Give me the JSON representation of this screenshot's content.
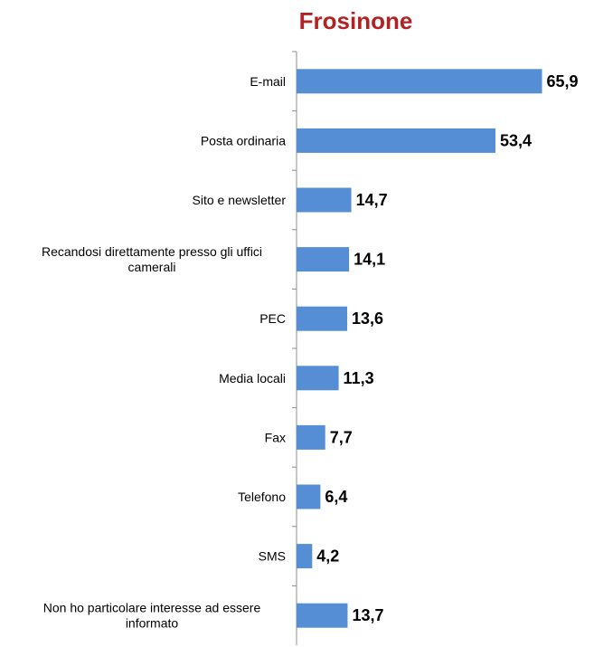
{
  "chart_data": {
    "type": "bar",
    "orientation": "horizontal",
    "title": "Frosinone",
    "categories": [
      "E-mail",
      "Posta ordinaria",
      "Sito e newsletter",
      "Recandosi direttamente presso gli uffici camerali",
      "PEC",
      "Media locali",
      "Fax",
      "Telefono",
      "SMS",
      "Non ho particolare interesse ad essere informato"
    ],
    "category_lines": [
      [
        "E-mail"
      ],
      [
        "Posta ordinaria"
      ],
      [
        "Sito e newsletter"
      ],
      [
        "Recandosi direttamente presso gli uffici",
        "camerali"
      ],
      [
        "PEC"
      ],
      [
        "Media locali"
      ],
      [
        "Fax"
      ],
      [
        "Telefono"
      ],
      [
        "SMS"
      ],
      [
        "Non ho particolare interesse ad essere",
        "informato"
      ]
    ],
    "values": [
      65.9,
      53.4,
      14.7,
      14.1,
      13.6,
      11.3,
      7.7,
      6.4,
      4.2,
      13.7
    ],
    "value_labels": [
      "65,9",
      "53,4",
      "14,7",
      "14,1",
      "13,6",
      "11,3",
      "7,7",
      "6,4",
      "4,2",
      "13,7"
    ],
    "xlim": [
      0,
      70
    ],
    "grid": false,
    "legend": "none",
    "bar_color": "#558ed5",
    "title_color": "#b22222"
  }
}
